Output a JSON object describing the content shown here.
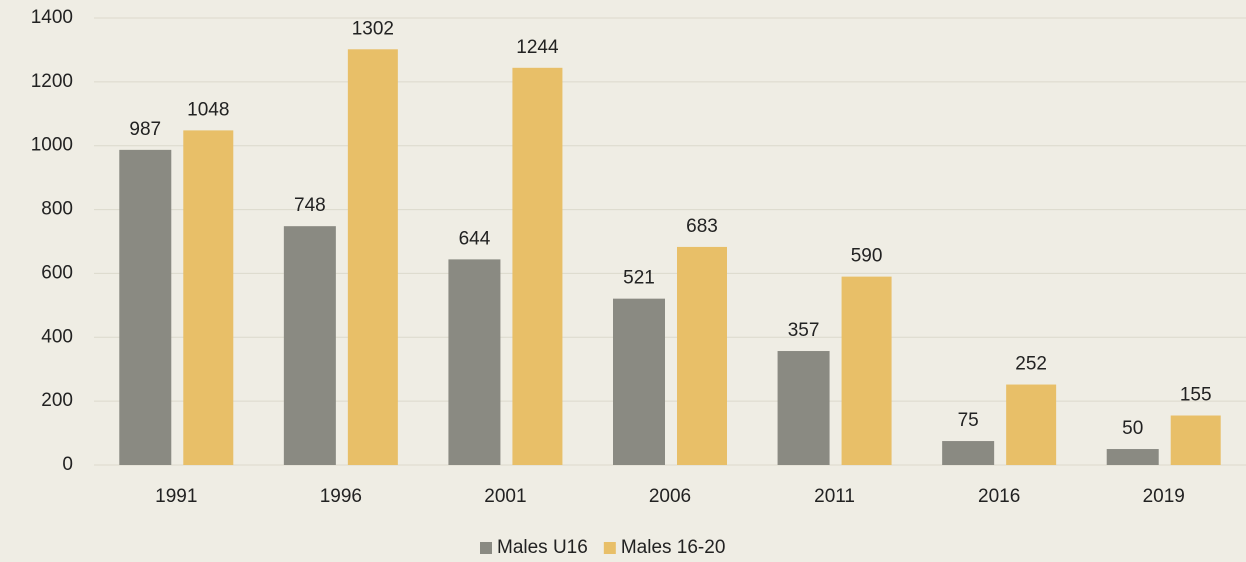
{
  "chart_data": {
    "type": "bar",
    "categories": [
      "1991",
      "1996",
      "2001",
      "2006",
      "2011",
      "2016",
      "2019"
    ],
    "series": [
      {
        "name": "Males U16",
        "color": "#8a8a82",
        "values": [
          987,
          748,
          644,
          521,
          357,
          75,
          50
        ]
      },
      {
        "name": "Males 16-20",
        "color": "#e8bf68",
        "values": [
          1048,
          1302,
          1244,
          683,
          590,
          252,
          155
        ]
      }
    ],
    "ylim": [
      0,
      1400
    ],
    "yticks": [
      0,
      200,
      400,
      600,
      800,
      1000,
      1200,
      1400
    ],
    "grid": true,
    "legend": "bottom"
  }
}
